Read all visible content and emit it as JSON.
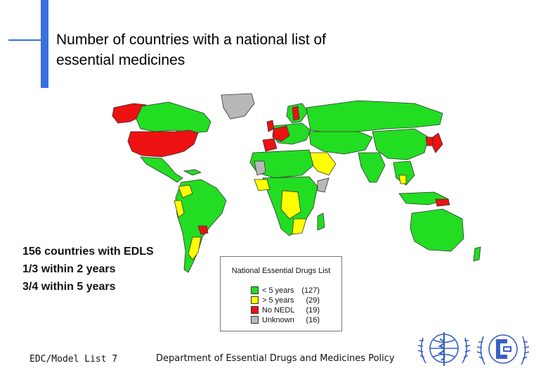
{
  "slide": {
    "title_line1": "Number of countries with a national list of",
    "title_line2": "essential medicines"
  },
  "stats": {
    "line1": "156 countries with EDLS",
    "line2": "1/3 within 2 years",
    "line3": "3/4 within 5 years"
  },
  "legend": {
    "title": "National Essential Drugs List",
    "items": [
      {
        "label": "< 5 years",
        "count": "(127)",
        "color": "#22dd22"
      },
      {
        "label": "> 5 years",
        "count": "(29)",
        "color": "#ffff00"
      },
      {
        "label": "No NEDL",
        "count": "(19)",
        "color": "#ee1111"
      },
      {
        "label": "Unknown",
        "count": "(16)",
        "color": "#b8b8b8"
      }
    ]
  },
  "footer": {
    "left": "EDC/Model List 7",
    "center": "Department of Essential Drugs and Medicines Policy"
  },
  "map": {
    "colors": {
      "green": "#22dd22",
      "yellow": "#ffff00",
      "red": "#ee1111",
      "gray": "#b8b8b8",
      "border": "#333333"
    },
    "icons": [
      "world-map",
      "who-emblem-logo",
      "edm-logo"
    ]
  }
}
